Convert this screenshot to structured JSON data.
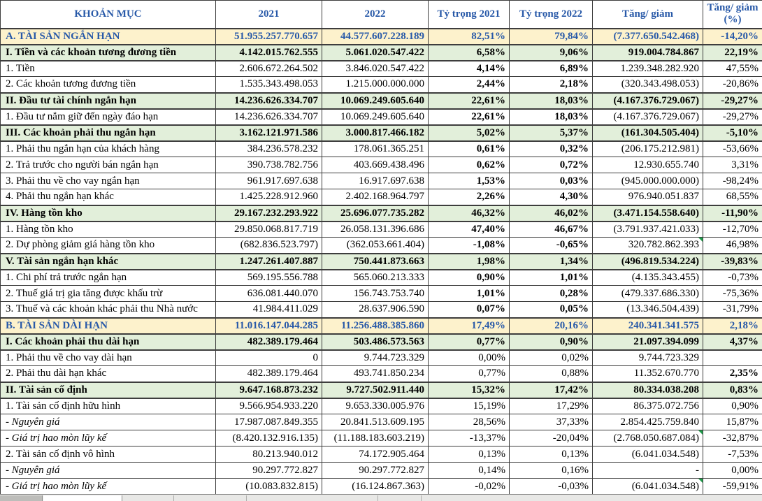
{
  "colors": {
    "section_total_bg": "#fdf2cc",
    "section_group_bg": "#e2efda",
    "accent_blue_text": "#2859a8",
    "grid_line": "#3d3d3d",
    "comment_flag_green": "#1f9e4b"
  },
  "table": {
    "columns": [
      {
        "label": "KHOẢN MỤC"
      },
      {
        "label": "2021"
      },
      {
        "label": "2022"
      },
      {
        "label": "Tỷ trọng 2021"
      },
      {
        "label": "Tỷ trọng 2022"
      },
      {
        "label": "Tăng/ giảm"
      },
      {
        "label": "Tăng/ giảm (%)"
      }
    ],
    "rows": [
      {
        "label": "A. TÀI SẢN NGẮN HẠN",
        "y2021": "51.955.257.770.657",
        "y2022": "44.577.607.228.189",
        "p2021": "82,51%",
        "p2022": "79,84%",
        "change": "(7.377.650.542.468)",
        "change_pct": "-14,20%",
        "style": "a",
        "pct_bold": false,
        "change_pct_bold": false,
        "comment": false
      },
      {
        "label": "I. Tiền và các khoản tương đương tiền",
        "y2021": "4.142.015.762.555",
        "y2022": "5.061.020.547.422",
        "p2021": "6,58%",
        "p2022": "9,06%",
        "change": "919.004.784.867",
        "change_pct": "22,19%",
        "style": "s",
        "pct_bold": false,
        "change_pct_bold": false,
        "comment": false
      },
      {
        "label": "1. Tiền",
        "y2021": "2.606.672.264.502",
        "y2022": "3.846.020.547.422",
        "p2021": "4,14%",
        "p2022": "6,89%",
        "change": "1.239.348.282.920",
        "change_pct": "47,55%",
        "style": "n",
        "pct_bold": true,
        "change_pct_bold": false,
        "comment": false
      },
      {
        "label": "2. Các khoản tương đương tiền",
        "y2021": "1.535.343.498.053",
        "y2022": "1.215.000.000.000",
        "p2021": "2,44%",
        "p2022": "2,18%",
        "change": "(320.343.498.053)",
        "change_pct": "-20,86%",
        "style": "n",
        "pct_bold": true,
        "change_pct_bold": false,
        "comment": false
      },
      {
        "label": "II. Đầu tư tài chính ngắn hạn",
        "y2021": "14.236.626.334.707",
        "y2022": "10.069.249.605.640",
        "p2021": "22,61%",
        "p2022": "18,03%",
        "change": "(4.167.376.729.067)",
        "change_pct": "-29,27%",
        "style": "s",
        "pct_bold": false,
        "change_pct_bold": false,
        "comment": false
      },
      {
        "label": "1. Đầu tư nắm giữ đến ngày đáo hạn",
        "y2021": "14.236.626.334.707",
        "y2022": "10.069.249.605.640",
        "p2021": "22,61%",
        "p2022": "18,03%",
        "change": "(4.167.376.729.067)",
        "change_pct": "-29,27%",
        "style": "n",
        "pct_bold": true,
        "change_pct_bold": false,
        "comment": false
      },
      {
        "label": "III. Các khoản phải thu ngắn hạn",
        "y2021": "3.162.121.971.586",
        "y2022": "3.000.817.466.182",
        "p2021": "5,02%",
        "p2022": "5,37%",
        "change": "(161.304.505.404)",
        "change_pct": "-5,10%",
        "style": "s",
        "pct_bold": false,
        "change_pct_bold": false,
        "comment": false
      },
      {
        "label": "1. Phải thu ngắn hạn của khách hàng",
        "y2021": "384.236.578.232",
        "y2022": "178.061.365.251",
        "p2021": "0,61%",
        "p2022": "0,32%",
        "change": "(206.175.212.981)",
        "change_pct": "-53,66%",
        "style": "n",
        "pct_bold": true,
        "change_pct_bold": false,
        "comment": false
      },
      {
        "label": "2. Trả trước cho người bán ngắn hạn",
        "y2021": "390.738.782.756",
        "y2022": "403.669.438.496",
        "p2021": "0,62%",
        "p2022": "0,72%",
        "change": "12.930.655.740",
        "change_pct": "3,31%",
        "style": "n",
        "pct_bold": true,
        "change_pct_bold": false,
        "comment": false
      },
      {
        "label": "3. Phải thu về cho vay ngắn hạn",
        "y2021": "961.917.697.638",
        "y2022": "16.917.697.638",
        "p2021": "1,53%",
        "p2022": "0,03%",
        "change": "(945.000.000.000)",
        "change_pct": "-98,24%",
        "style": "n",
        "pct_bold": true,
        "change_pct_bold": false,
        "comment": false
      },
      {
        "label": "4. Phải thu ngắn hạn khác",
        "y2021": "1.425.228.912.960",
        "y2022": "2.402.168.964.797",
        "p2021": "2,26%",
        "p2022": "4,30%",
        "change": "976.940.051.837",
        "change_pct": "68,55%",
        "style": "n",
        "pct_bold": true,
        "change_pct_bold": false,
        "comment": false
      },
      {
        "label": "IV. Hàng tồn kho",
        "y2021": "29.167.232.293.922",
        "y2022": "25.696.077.735.282",
        "p2021": "46,32%",
        "p2022": "46,02%",
        "change": "(3.471.154.558.640)",
        "change_pct": "-11,90%",
        "style": "s",
        "pct_bold": false,
        "change_pct_bold": false,
        "comment": false
      },
      {
        "label": "1. Hàng tồn kho",
        "y2021": "29.850.068.817.719",
        "y2022": "26.058.131.396.686",
        "p2021": "47,40%",
        "p2022": "46,67%",
        "change": "(3.791.937.421.033)",
        "change_pct": "-12,70%",
        "style": "n",
        "pct_bold": true,
        "change_pct_bold": false,
        "comment": false
      },
      {
        "label": "2. Dự phòng giảm giá hàng tồn kho",
        "y2021": "(682.836.523.797)",
        "y2022": "(362.053.661.404)",
        "p2021": "-1,08%",
        "p2022": "-0,65%",
        "change": "320.782.862.393",
        "change_pct": "46,98%",
        "style": "n",
        "pct_bold": true,
        "change_pct_bold": false,
        "comment": true
      },
      {
        "label": "V. Tài sản ngắn hạn khác",
        "y2021": "1.247.261.407.887",
        "y2022": "750.441.873.663",
        "p2021": "1,98%",
        "p2022": "1,34%",
        "change": "(496.819.534.224)",
        "change_pct": "-39,83%",
        "style": "s",
        "pct_bold": false,
        "change_pct_bold": false,
        "comment": false
      },
      {
        "label": "1. Chi phí trả trước ngắn hạn",
        "y2021": "569.195.556.788",
        "y2022": "565.060.213.333",
        "p2021": "0,90%",
        "p2022": "1,01%",
        "change": "(4.135.343.455)",
        "change_pct": "-0,73%",
        "style": "n",
        "pct_bold": true,
        "change_pct_bold": false,
        "comment": false
      },
      {
        "label": "2. Thuế giá trị gia tăng được khấu trừ",
        "y2021": "636.081.440.070",
        "y2022": "156.743.753.740",
        "p2021": "1,01%",
        "p2022": "0,28%",
        "change": "(479.337.686.330)",
        "change_pct": "-75,36%",
        "style": "n",
        "pct_bold": true,
        "change_pct_bold": false,
        "comment": false
      },
      {
        "label": "3. Thuế và các khoản khác phải thu Nhà nước",
        "y2021": "41.984.411.029",
        "y2022": "28.637.906.590",
        "p2021": "0,07%",
        "p2022": "0,05%",
        "change": "(13.346.504.439)",
        "change_pct": "-31,79%",
        "style": "n",
        "pct_bold": true,
        "change_pct_bold": false,
        "comment": false
      },
      {
        "label": "B. TÀI SẢN DÀI HẠN",
        "y2021": "11.016.147.044.285",
        "y2022": "11.256.488.385.860",
        "p2021": "17,49%",
        "p2022": "20,16%",
        "change": "240.341.341.575",
        "change_pct": "2,18%",
        "style": "a",
        "pct_bold": false,
        "change_pct_bold": false,
        "comment": false
      },
      {
        "label": "I. Các khoản phải thu dài hạn",
        "y2021": "482.389.179.464",
        "y2022": "503.486.573.563",
        "p2021": "0,77%",
        "p2022": "0,90%",
        "change": "21.097.394.099",
        "change_pct": "4,37%",
        "style": "s",
        "pct_bold": false,
        "change_pct_bold": false,
        "comment": false
      },
      {
        "label": "1. Phải thu về cho vay dài hạn",
        "y2021": "0",
        "y2022": "9.744.723.329",
        "p2021": "0,00%",
        "p2022": "0,02%",
        "change": "9.744.723.329",
        "change_pct": "",
        "style": "n",
        "pct_bold": false,
        "change_pct_bold": false,
        "comment": false
      },
      {
        "label": "2. Phải thu dài hạn khác",
        "y2021": "482.389.179.464",
        "y2022": "493.741.850.234",
        "p2021": "0,77%",
        "p2022": "0,88%",
        "change": "11.352.670.770",
        "change_pct": "2,35%",
        "style": "n",
        "pct_bold": false,
        "change_pct_bold": true,
        "comment": false
      },
      {
        "label": "II. Tài sản cố định",
        "y2021": "9.647.168.873.232",
        "y2022": "9.727.502.911.440",
        "p2021": "15,32%",
        "p2022": "17,42%",
        "change": "80.334.038.208",
        "change_pct": "0,83%",
        "style": "s",
        "pct_bold": false,
        "change_pct_bold": false,
        "comment": false
      },
      {
        "label": "1. Tài sản cố định hữu hình",
        "y2021": "9.566.954.933.220",
        "y2022": "9.653.330.005.976",
        "p2021": "15,19%",
        "p2022": "17,29%",
        "change": "86.375.072.756",
        "change_pct": "0,90%",
        "style": "n",
        "pct_bold": false,
        "change_pct_bold": false,
        "comment": false
      },
      {
        "label": "- Nguyên giá",
        "y2021": "17.987.087.849.355",
        "y2022": "20.841.513.609.195",
        "p2021": "28,56%",
        "p2022": "37,33%",
        "change": "2.854.425.759.840",
        "change_pct": "15,87%",
        "style": "i",
        "pct_bold": false,
        "change_pct_bold": false,
        "comment": false
      },
      {
        "label": "- Giá trị hao mòn lũy kế",
        "y2021": "(8.420.132.916.135)",
        "y2022": "(11.188.183.603.219)",
        "p2021": "-13,37%",
        "p2022": "-20,04%",
        "change": "(2.768.050.687.084)",
        "change_pct": "-32,87%",
        "style": "i",
        "pct_bold": false,
        "change_pct_bold": false,
        "comment": true
      },
      {
        "label": "2. Tài sản cố định vô hình",
        "y2021": "80.213.940.012",
        "y2022": "74.172.905.464",
        "p2021": "0,13%",
        "p2022": "0,13%",
        "change": "(6.041.034.548)",
        "change_pct": "-7,53%",
        "style": "n",
        "pct_bold": false,
        "change_pct_bold": false,
        "comment": false
      },
      {
        "label": "- Nguyên giá",
        "y2021": "90.297.772.827",
        "y2022": "90.297.772.827",
        "p2021": "0,14%",
        "p2022": "0,16%",
        "change": "-",
        "change_pct": "0,00%",
        "style": "i",
        "pct_bold": false,
        "change_pct_bold": false,
        "comment": false
      },
      {
        "label": "- Giá trị hao mòn lũy kế",
        "y2021": "(10.083.832.815)",
        "y2022": "(16.124.867.363)",
        "p2021": "-0,02%",
        "p2022": "-0,03%",
        "change": "(6.041.034.548)",
        "change_pct": "-59,91%",
        "style": "i",
        "pct_bold": false,
        "change_pct_bold": false,
        "comment": true
      }
    ]
  }
}
